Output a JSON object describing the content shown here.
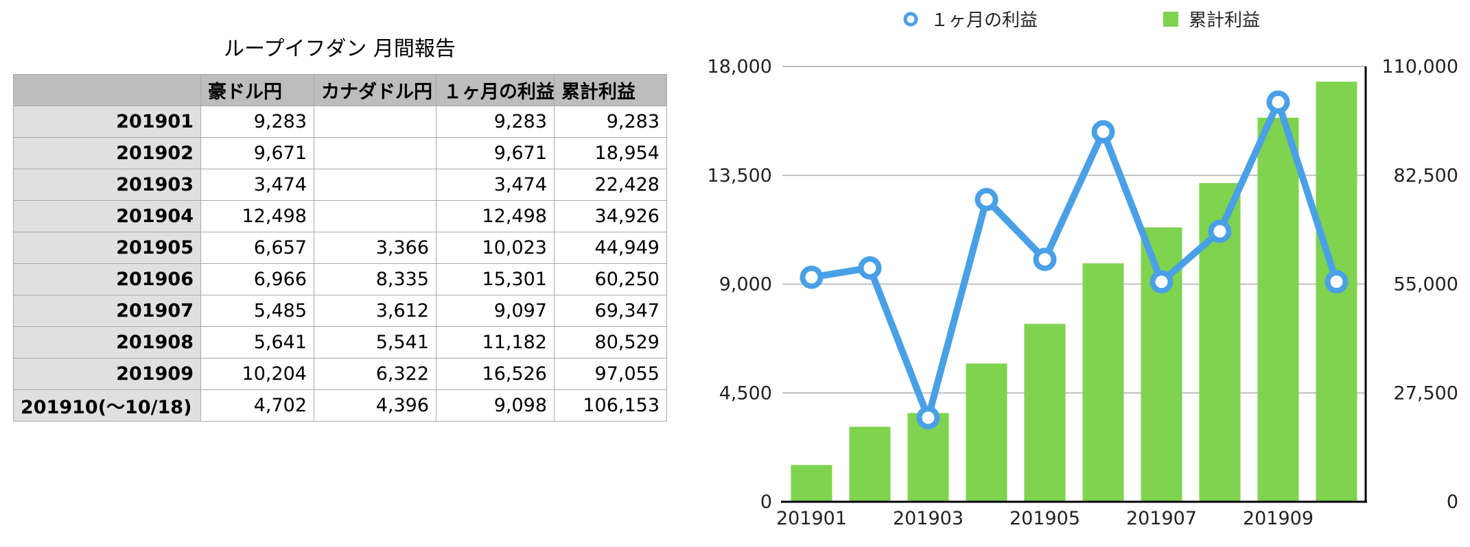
{
  "table": {
    "title": "ループイフダン 月間報告",
    "headers": [
      "",
      "豪ドル円",
      "カナダドル円",
      "１ヶ月の利益",
      "累計利益"
    ],
    "rows": [
      [
        "201901",
        "9,283",
        "",
        "9,283",
        "9,283"
      ],
      [
        "201902",
        "9,671",
        "",
        "9,671",
        "18,954"
      ],
      [
        "201903",
        "3,474",
        "",
        "3,474",
        "22,428"
      ],
      [
        "201904",
        "12,498",
        "",
        "12,498",
        "34,926"
      ],
      [
        "201905",
        "6,657",
        "3,366",
        "10,023",
        "44,949"
      ],
      [
        "201906",
        "6,966",
        "8,335",
        "15,301",
        "60,250"
      ],
      [
        "201907",
        "5,485",
        "3,612",
        "9,097",
        "69,347"
      ],
      [
        "201908",
        "5,641",
        "5,541",
        "11,182",
        "80,529"
      ],
      [
        "201909",
        "10,204",
        "6,322",
        "16,526",
        "97,055"
      ],
      [
        "201910(〜10/18)",
        "4,702",
        "4,396",
        "9,098",
        "106,153"
      ]
    ]
  },
  "chart_data": {
    "type": "bar+line",
    "categories": [
      "201901",
      "201902",
      "201903",
      "201904",
      "201905",
      "201906",
      "201907",
      "201908",
      "201909",
      "201910"
    ],
    "x_tick_labels": [
      "201901",
      "201903",
      "201905",
      "201907",
      "201909"
    ],
    "series": [
      {
        "name": "１ヶ月の利益",
        "kind": "line",
        "axis": "left",
        "values": [
          9283,
          9671,
          3474,
          12498,
          10023,
          15301,
          9097,
          11182,
          16526,
          9098
        ],
        "color": "#4aa0e6"
      },
      {
        "name": "累計利益",
        "kind": "bar",
        "axis": "right",
        "values": [
          9283,
          18954,
          22428,
          34926,
          44949,
          60250,
          69347,
          80529,
          97055,
          106153
        ],
        "color": "#7fd34e"
      }
    ],
    "y_left": {
      "min": 0,
      "max": 18000,
      "ticks": [
        "0",
        "4,500",
        "9,000",
        "13,500",
        "18,000"
      ]
    },
    "y_right": {
      "min": 0,
      "max": 110000,
      "ticks": [
        "0",
        "27,500",
        "55,000",
        "82,500",
        "110,000"
      ]
    },
    "legend_position": "top",
    "grid": true
  }
}
